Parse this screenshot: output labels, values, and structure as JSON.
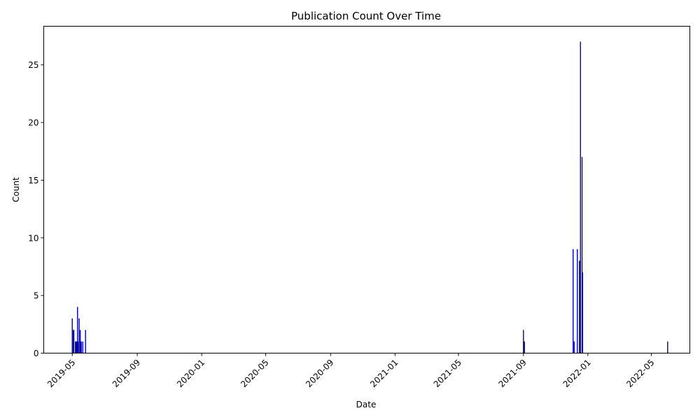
{
  "chart_data": {
    "type": "bar",
    "title": "Publication Count Over Time",
    "xlabel": "Date",
    "ylabel": "Count",
    "x_axis": "date",
    "xlim": [
      "2019-03-08",
      "2022-07-13"
    ],
    "ylim": [
      0,
      28.35
    ],
    "x_ticks": [
      "2019-05",
      "2019-09",
      "2020-01",
      "2020-05",
      "2020-09",
      "2021-01",
      "2021-05",
      "2021-09",
      "2022-01",
      "2022-05"
    ],
    "y_ticks": [
      0,
      5,
      10,
      15,
      20,
      25
    ],
    "grid": false,
    "bar_color": "#0000ff",
    "bar_edge_color": "#000080",
    "series": [
      {
        "x": [
          "2019-05-01",
          "2019-05-03",
          "2019-05-04",
          "2019-05-07",
          "2019-05-08",
          "2019-05-09",
          "2019-05-10",
          "2019-05-11",
          "2019-05-12",
          "2019-05-14",
          "2019-05-16",
          "2019-05-17",
          "2019-05-18",
          "2019-05-21",
          "2019-05-26",
          "2021-09-01",
          "2021-09-03",
          "2021-12-04",
          "2021-12-06",
          "2021-12-12",
          "2021-12-16",
          "2021-12-18",
          "2021-12-21",
          "2021-12-22",
          "2022-06-01"
        ],
        "values": [
          3,
          2,
          2,
          1,
          1,
          1,
          1,
          4,
          1,
          3,
          2,
          1,
          1,
          1,
          2,
          2,
          1,
          9,
          1,
          9,
          8,
          27,
          17,
          7,
          1
        ]
      }
    ]
  }
}
